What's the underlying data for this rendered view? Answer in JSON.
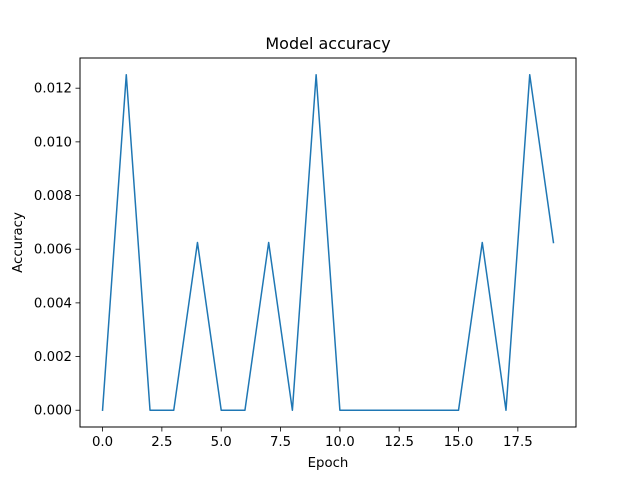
{
  "chart_data": {
    "type": "line",
    "title": "Model accuracy",
    "xlabel": "Epoch",
    "ylabel": "Accuracy",
    "xlim": [
      -0.95,
      19.95
    ],
    "ylim": [
      -0.000625,
      0.013125
    ],
    "xticks": [
      0.0,
      2.5,
      5.0,
      7.5,
      10.0,
      12.5,
      15.0,
      17.5
    ],
    "xtick_labels": [
      "0.0",
      "2.5",
      "5.0",
      "7.5",
      "10.0",
      "12.5",
      "15.0",
      "17.5"
    ],
    "yticks": [
      0.0,
      0.002,
      0.004,
      0.006,
      0.008,
      0.01,
      0.012
    ],
    "ytick_labels": [
      "0.000",
      "0.002",
      "0.004",
      "0.006",
      "0.008",
      "0.010",
      "0.012"
    ],
    "grid": false,
    "series": [
      {
        "color": "#1f77b4",
        "x": [
          0,
          1,
          2,
          3,
          4,
          5,
          6,
          7,
          8,
          9,
          10,
          11,
          12,
          13,
          14,
          15,
          16,
          17,
          18,
          19
        ],
        "values": [
          0.0,
          0.0125,
          0.0,
          0.0,
          0.00625,
          0.0,
          0.0,
          0.00625,
          0.0,
          0.0125,
          0.0,
          0.0,
          0.0,
          0.0,
          0.0,
          0.0,
          0.00625,
          0.0,
          0.0125,
          0.00625
        ]
      }
    ]
  }
}
